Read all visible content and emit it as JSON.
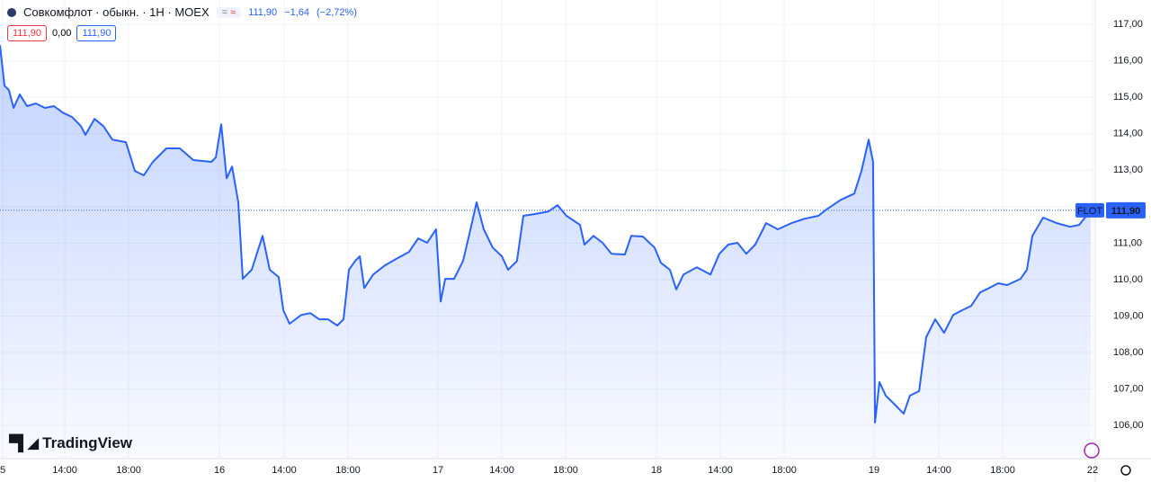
{
  "chart_data": {
    "type": "line",
    "title": "Совкомфлот · обыкн. · 1H · MOEX",
    "header": {
      "last": "111,90",
      "change": "−1,64",
      "change_pct": "(−2,72%)"
    },
    "boxes": [
      "111,90",
      "0,00",
      "111,90"
    ],
    "brand": "TradingView",
    "ticker": "FLOT",
    "last_price": {
      "value": 111.9,
      "label": "111,90"
    },
    "grid": true,
    "x": [
      0,
      0.28,
      0.56,
      0.85,
      1.24,
      1.69,
      2.25,
      2.82,
      3.38,
      3.94,
      4.51,
      5.07,
      5.35,
      5.92,
      6.48,
      7.04,
      7.89,
      8.45,
      9.01,
      9.58,
      10.42,
      11.27,
      12.11,
      13.24,
      13.52,
      13.86,
      14.2,
      14.54,
      14.93,
      15.21,
      15.77,
      16.45,
      16.9,
      17.46,
      17.75,
      18.14,
      18.87,
      19.44,
      20,
      20.56,
      21.13,
      21.52,
      21.86,
      22.25,
      22.54,
      22.82,
      23.38,
      24.11,
      24.79,
      25.63,
      26.2,
      26.76,
      27.32,
      27.61,
      27.89,
      28.45,
      29.01,
      29.41,
      29.86,
      30.31,
      30.87,
      31.44,
      31.83,
      32.39,
      32.79,
      33.52,
      34.37,
      34.93,
      35.49,
      36.34,
      36.62,
      37.18,
      37.75,
      38.31,
      39.15,
      39.55,
      40.28,
      41.01,
      41.41,
      41.97,
      42.37,
      42.82,
      43.66,
      44.51,
      45.07,
      45.63,
      46.2,
      46.76,
      47.32,
      48,
      48.73,
      49.58,
      50.42,
      51.27,
      51.83,
      52.68,
      53.52,
      53.97,
      54.42,
      54.7,
      54.82,
      55.1,
      55.49,
      56.06,
      56.62,
      57.01,
      57.58,
      58.03,
      58.59,
      59.15,
      59.72,
      60.28,
      60.85,
      61.41,
      61.97,
      62.54,
      63.1,
      63.94,
      64.34,
      64.68,
      65.35,
      66.2,
      67.04,
      67.61,
      68.34
    ],
    "series": [
      {
        "color": "#2962ff",
        "values": [
          116.43,
          115.32,
          115.2,
          114.71,
          115.08,
          114.76,
          114.83,
          114.71,
          114.76,
          114.58,
          114.46,
          114.21,
          113.97,
          114.41,
          114.21,
          113.84,
          113.77,
          112.98,
          112.86,
          113.23,
          113.6,
          113.6,
          113.28,
          113.23,
          113.35,
          114.26,
          112.78,
          113.1,
          112.12,
          110.02,
          110.27,
          111.2,
          110.27,
          110.07,
          109.16,
          108.79,
          109.03,
          109.08,
          108.91,
          108.91,
          108.74,
          108.91,
          110.27,
          110.51,
          110.64,
          109.77,
          110.14,
          110.39,
          110.56,
          110.76,
          111.13,
          111.01,
          111.38,
          109.4,
          110.02,
          110.02,
          110.51,
          111.25,
          112.12,
          111.38,
          110.88,
          110.64,
          110.27,
          110.51,
          111.75,
          111.8,
          111.87,
          112.04,
          111.75,
          111.5,
          110.96,
          111.2,
          111.01,
          110.71,
          110.69,
          111.2,
          111.18,
          110.88,
          110.46,
          110.27,
          109.73,
          110.14,
          110.34,
          110.14,
          110.71,
          110.96,
          111.01,
          110.71,
          110.96,
          111.55,
          111.38,
          111.55,
          111.67,
          111.75,
          111.94,
          112.19,
          112.36,
          112.98,
          113.84,
          113.23,
          106.08,
          107.19,
          106.82,
          106.57,
          106.32,
          106.82,
          106.94,
          108.42,
          108.91,
          108.54,
          109.03,
          109.16,
          109.28,
          109.65,
          109.77,
          109.9,
          109.85,
          110.02,
          110.27,
          111.2,
          111.7,
          111.55,
          111.45,
          111.5,
          111.9
        ]
      }
    ],
    "xlim": [
      0,
      68.45
    ],
    "xticks": [
      {
        "value": 0.17,
        "label": "5"
      },
      {
        "value": 4.06,
        "label": "14:00"
      },
      {
        "value": 8.06,
        "label": "18:00"
      },
      {
        "value": 13.75,
        "label": "16"
      },
      {
        "value": 17.8,
        "label": "14:00"
      },
      {
        "value": 21.8,
        "label": "18:00"
      },
      {
        "value": 27.44,
        "label": "17"
      },
      {
        "value": 31.44,
        "label": "14:00"
      },
      {
        "value": 35.44,
        "label": "18:00"
      },
      {
        "value": 41.13,
        "label": "18"
      },
      {
        "value": 45.13,
        "label": "14:00"
      },
      {
        "value": 49.13,
        "label": "18:00"
      },
      {
        "value": 54.76,
        "label": "19"
      },
      {
        "value": 58.82,
        "label": "14:00"
      },
      {
        "value": 62.82,
        "label": "18:00"
      },
      {
        "value": 68.45,
        "label": "22"
      }
    ],
    "ylim": [
      105.09,
      117.67
    ],
    "yticks": [
      {
        "value": 106,
        "label": "106,00"
      },
      {
        "value": 107,
        "label": "107,00"
      },
      {
        "value": 108,
        "label": "108,00"
      },
      {
        "value": 109,
        "label": "109,00"
      },
      {
        "value": 110,
        "label": "110,00"
      },
      {
        "value": 111,
        "label": "111,00"
      },
      {
        "value": 112,
        "label": "112,00"
      },
      {
        "value": 113,
        "label": "113,00"
      },
      {
        "value": 114,
        "label": "114,00"
      },
      {
        "value": 115,
        "label": "115,00"
      },
      {
        "value": 116,
        "label": "116,00"
      },
      {
        "value": 117,
        "label": "117,00"
      }
    ]
  }
}
